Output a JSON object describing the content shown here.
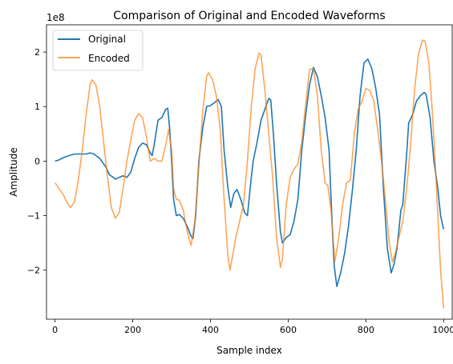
{
  "chart_data": {
    "type": "line",
    "title": "Comparison of Original and Encoded Waveforms",
    "xlabel": "Sample index",
    "ylabel": "Amplitude",
    "y_offset_label": "1e8",
    "xlim": [
      -22,
      1022
    ],
    "ylim": [
      -2.9,
      2.5
    ],
    "x_ticks": [
      0,
      200,
      400,
      600,
      800,
      1000
    ],
    "y_ticks": [
      -2,
      -1,
      0,
      1,
      2
    ],
    "x_tick_labels": [
      "0",
      "200",
      "400",
      "600",
      "800",
      "1000"
    ],
    "y_tick_labels": [
      "−2",
      "−1",
      "0",
      "1",
      "2"
    ],
    "grid": false,
    "legend_position": "top-left",
    "series": [
      {
        "name": "Original",
        "color": "#1f77b4",
        "points": [
          [
            0,
            0
          ],
          [
            10,
            0.02
          ],
          [
            20,
            0.06
          ],
          [
            35,
            0.1
          ],
          [
            50,
            0.13
          ],
          [
            70,
            0.13
          ],
          [
            80,
            0.13
          ],
          [
            90,
            0.15
          ],
          [
            100,
            0.13
          ],
          [
            115,
            0.05
          ],
          [
            130,
            -0.1
          ],
          [
            140,
            -0.25
          ],
          [
            150,
            -0.3
          ],
          [
            155,
            -0.33
          ],
          [
            165,
            -0.3
          ],
          [
            175,
            -0.27
          ],
          [
            185,
            -0.3
          ],
          [
            195,
            -0.2
          ],
          [
            205,
            0.05
          ],
          [
            215,
            0.25
          ],
          [
            225,
            0.33
          ],
          [
            235,
            0.3
          ],
          [
            245,
            0.15
          ],
          [
            250,
            0.1
          ],
          [
            255,
            0.3
          ],
          [
            265,
            0.75
          ],
          [
            275,
            0.8
          ],
          [
            285,
            0.95
          ],
          [
            290,
            0.97
          ],
          [
            295,
            0.6
          ],
          [
            300,
            0
          ],
          [
            305,
            -0.7
          ],
          [
            312,
            -1.0
          ],
          [
            320,
            -0.98
          ],
          [
            330,
            -1.05
          ],
          [
            340,
            -1.2
          ],
          [
            350,
            -1.38
          ],
          [
            355,
            -1.42
          ],
          [
            362,
            -1.0
          ],
          [
            370,
            0
          ],
          [
            380,
            0.6
          ],
          [
            390,
            1.0
          ],
          [
            400,
            1.02
          ],
          [
            410,
            1.07
          ],
          [
            420,
            1.13
          ],
          [
            428,
            1.0
          ],
          [
            435,
            0.2
          ],
          [
            445,
            -0.5
          ],
          [
            452,
            -0.85
          ],
          [
            460,
            -0.6
          ],
          [
            468,
            -0.52
          ],
          [
            478,
            -0.7
          ],
          [
            488,
            -0.95
          ],
          [
            495,
            -1.0
          ],
          [
            505,
            -0.3
          ],
          [
            510,
            0
          ],
          [
            520,
            0.35
          ],
          [
            530,
            0.75
          ],
          [
            540,
            0.95
          ],
          [
            550,
            1.15
          ],
          [
            555,
            1.12
          ],
          [
            562,
            0.5
          ],
          [
            570,
            -0.4
          ],
          [
            580,
            -1.3
          ],
          [
            585,
            -1.5
          ],
          [
            595,
            -1.4
          ],
          [
            605,
            -1.35
          ],
          [
            615,
            -1.1
          ],
          [
            625,
            -0.7
          ],
          [
            635,
            0.2
          ],
          [
            645,
            0.85
          ],
          [
            655,
            1.4
          ],
          [
            665,
            1.72
          ],
          [
            675,
            1.55
          ],
          [
            685,
            1.2
          ],
          [
            695,
            0.8
          ],
          [
            705,
            0.2
          ],
          [
            712,
            -1.0
          ],
          [
            718,
            -1.9
          ],
          [
            725,
            -2.3
          ],
          [
            735,
            -2.05
          ],
          [
            745,
            -1.7
          ],
          [
            755,
            -1.2
          ],
          [
            765,
            -0.55
          ],
          [
            775,
            0.2
          ],
          [
            785,
            1.2
          ],
          [
            795,
            1.8
          ],
          [
            805,
            1.87
          ],
          [
            815,
            1.7
          ],
          [
            825,
            1.35
          ],
          [
            835,
            0.85
          ],
          [
            845,
            -0.5
          ],
          [
            855,
            -1.6
          ],
          [
            865,
            -2.05
          ],
          [
            872,
            -1.9
          ],
          [
            880,
            -1.6
          ],
          [
            890,
            -0.9
          ],
          [
            895,
            -0.8
          ],
          [
            905,
            0.15
          ],
          [
            910,
            0.7
          ],
          [
            920,
            0.85
          ],
          [
            930,
            1.1
          ],
          [
            940,
            1.2
          ],
          [
            950,
            1.26
          ],
          [
            955,
            1.22
          ],
          [
            965,
            0.8
          ],
          [
            975,
            0
          ],
          [
            985,
            -0.5
          ],
          [
            992,
            -1.0
          ],
          [
            1000,
            -1.25
          ]
        ]
      },
      {
        "name": "Encoded",
        "color": "#ff7f0e",
        "opacity": 0.7,
        "points": [
          [
            0,
            -0.4
          ],
          [
            10,
            -0.5
          ],
          [
            20,
            -0.6
          ],
          [
            30,
            -0.75
          ],
          [
            40,
            -0.85
          ],
          [
            50,
            -0.75
          ],
          [
            60,
            -0.35
          ],
          [
            70,
            0.2
          ],
          [
            80,
            0.85
          ],
          [
            90,
            1.4
          ],
          [
            95,
            1.49
          ],
          [
            105,
            1.4
          ],
          [
            115,
            1.0
          ],
          [
            125,
            0.35
          ],
          [
            135,
            -0.3
          ],
          [
            145,
            -0.85
          ],
          [
            155,
            -1.05
          ],
          [
            165,
            -0.95
          ],
          [
            175,
            -0.5
          ],
          [
            185,
            0
          ],
          [
            195,
            0.4
          ],
          [
            205,
            0.75
          ],
          [
            215,
            0.87
          ],
          [
            225,
            0.8
          ],
          [
            235,
            0.45
          ],
          [
            245,
            0
          ],
          [
            255,
            0.05
          ],
          [
            265,
            0
          ],
          [
            275,
            0
          ],
          [
            285,
            0.3
          ],
          [
            292,
            0.58
          ],
          [
            300,
            0.2
          ],
          [
            305,
            -0.5
          ],
          [
            312,
            -0.7
          ],
          [
            320,
            -0.72
          ],
          [
            330,
            -0.9
          ],
          [
            340,
            -1.3
          ],
          [
            350,
            -1.55
          ],
          [
            360,
            -1.1
          ],
          [
            370,
            -0.1
          ],
          [
            380,
            0.9
          ],
          [
            390,
            1.55
          ],
          [
            395,
            1.62
          ],
          [
            405,
            1.5
          ],
          [
            415,
            1.2
          ],
          [
            425,
            0.6
          ],
          [
            435,
            -0.7
          ],
          [
            445,
            -1.75
          ],
          [
            450,
            -2.0
          ],
          [
            458,
            -1.7
          ],
          [
            465,
            -1.4
          ],
          [
            475,
            -1.1
          ],
          [
            485,
            -0.8
          ],
          [
            495,
            0
          ],
          [
            505,
            1.0
          ],
          [
            515,
            1.7
          ],
          [
            525,
            1.98
          ],
          [
            530,
            1.95
          ],
          [
            540,
            1.3
          ],
          [
            550,
            0.5
          ],
          [
            560,
            -0.3
          ],
          [
            570,
            -1.4
          ],
          [
            580,
            -1.95
          ],
          [
            585,
            -1.8
          ],
          [
            595,
            -0.8
          ],
          [
            605,
            -0.3
          ],
          [
            615,
            -0.15
          ],
          [
            625,
            -0.05
          ],
          [
            635,
            0.35
          ],
          [
            645,
            1.05
          ],
          [
            655,
            1.68
          ],
          [
            665,
            1.7
          ],
          [
            675,
            1.2
          ],
          [
            685,
            0.2
          ],
          [
            695,
            -0.4
          ],
          [
            702,
            -0.45
          ],
          [
            710,
            -0.9
          ],
          [
            720,
            -1.85
          ],
          [
            730,
            -1.4
          ],
          [
            740,
            -0.8
          ],
          [
            750,
            -0.4
          ],
          [
            760,
            -0.35
          ],
          [
            770,
            0.5
          ],
          [
            780,
            0.95
          ],
          [
            790,
            1.1
          ],
          [
            800,
            1.33
          ],
          [
            810,
            1.3
          ],
          [
            820,
            1.1
          ],
          [
            830,
            0.6
          ],
          [
            840,
            0
          ],
          [
            850,
            -0.7
          ],
          [
            860,
            -1.5
          ],
          [
            868,
            -1.85
          ],
          [
            875,
            -1.7
          ],
          [
            885,
            -1.4
          ],
          [
            895,
            -1.1
          ],
          [
            905,
            -0.5
          ],
          [
            915,
            0.3
          ],
          [
            925,
            1.3
          ],
          [
            935,
            1.95
          ],
          [
            945,
            2.22
          ],
          [
            952,
            2.2
          ],
          [
            962,
            1.8
          ],
          [
            970,
            1.0
          ],
          [
            978,
            0
          ],
          [
            985,
            -1.0
          ],
          [
            992,
            -2.0
          ],
          [
            1000,
            -2.7
          ]
        ]
      }
    ]
  }
}
